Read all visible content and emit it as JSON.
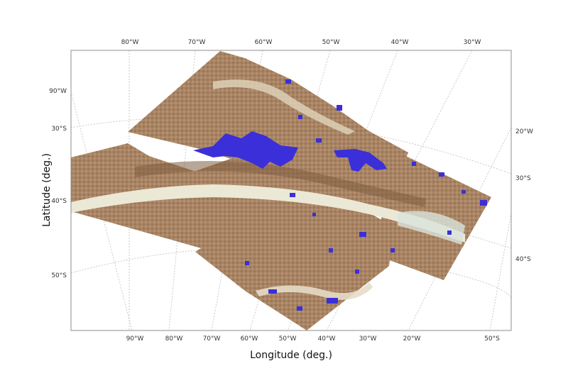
{
  "map": {
    "xlabel": "Longitude (deg.)",
    "ylabel": "Latitude (deg.)",
    "top_ticks": [
      "80°W",
      "70°W",
      "60°W",
      "50°W",
      "40°W",
      "30°W"
    ],
    "bottom_ticks": [
      "90°W",
      "80°W",
      "70°W",
      "60°W",
      "50°W",
      "40°W",
      "30°W",
      "20°W",
      "50°S"
    ],
    "left_ticks": [
      "90°W",
      "30°S",
      "40°S",
      "50°S"
    ],
    "right_ticks": [
      "20°W",
      "30°S",
      "40°S"
    ],
    "colors": {
      "terrain_dark": "#7a5a3e",
      "terrain_mid": "#b08e6c",
      "terrain_light": "#e8e4d2",
      "highlight": "#3a2fd8",
      "graticule": "#b8b8b8",
      "frame": "#888888"
    }
  }
}
